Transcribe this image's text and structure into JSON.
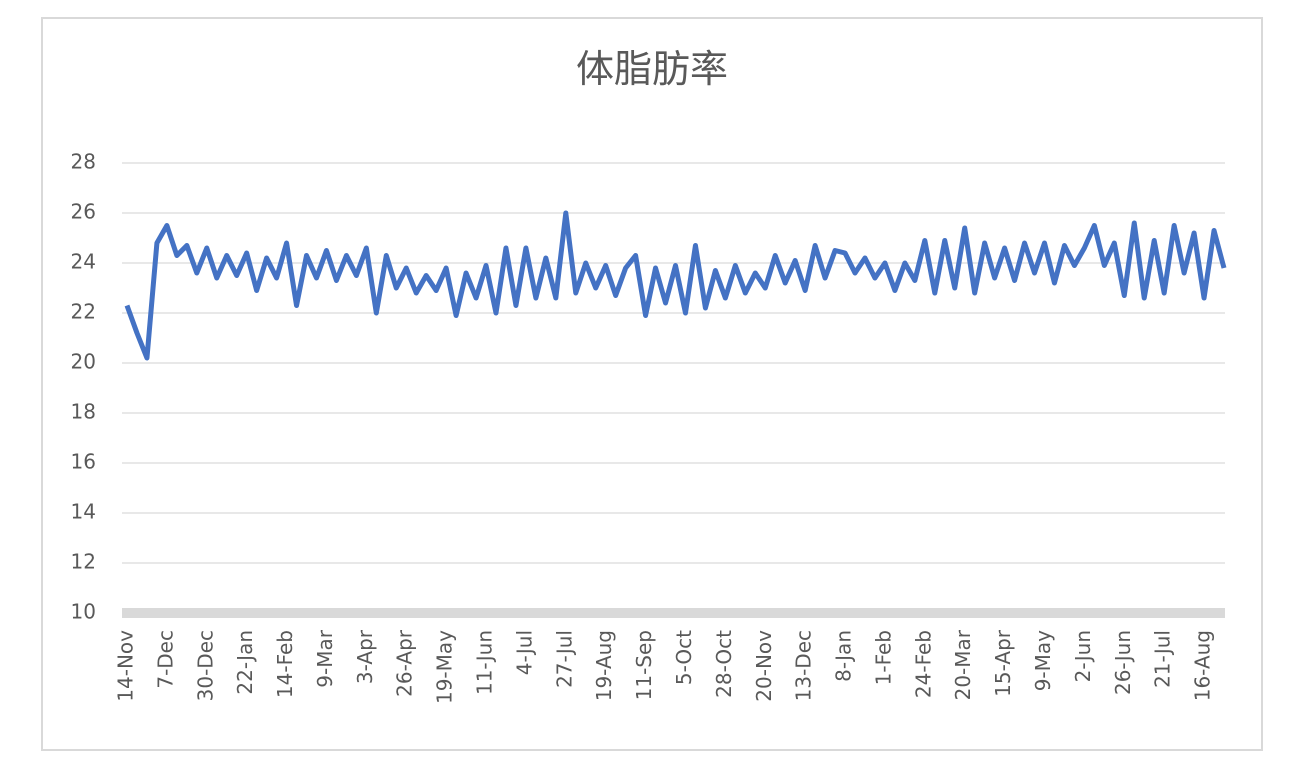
{
  "chart_data": {
    "type": "line",
    "title": "体脂肪率",
    "categories": [
      "14-Nov",
      null,
      null,
      null,
      "7-Dec",
      null,
      null,
      null,
      "30-Dec",
      null,
      null,
      null,
      "22-Jan",
      null,
      null,
      null,
      "14-Feb",
      null,
      null,
      null,
      "9-Mar",
      null,
      null,
      null,
      "3-Apr",
      null,
      null,
      null,
      "26-Apr",
      null,
      null,
      null,
      "19-May",
      null,
      null,
      null,
      "11-Jun",
      null,
      null,
      null,
      "4-Jul",
      null,
      null,
      null,
      "27-Jul",
      null,
      null,
      null,
      "19-Aug",
      null,
      null,
      null,
      "11-Sep",
      null,
      null,
      null,
      "5-Oct",
      null,
      null,
      null,
      "28-Oct",
      null,
      null,
      null,
      "20-Nov",
      null,
      null,
      null,
      "13-Dec",
      null,
      null,
      null,
      "8-Jan",
      null,
      null,
      null,
      "1-Feb",
      null,
      null,
      null,
      "24-Feb",
      null,
      null,
      null,
      "20-Mar",
      null,
      null,
      null,
      "15-Apr",
      null,
      null,
      null,
      "9-May",
      null,
      null,
      null,
      "2-Jun",
      null,
      null,
      null,
      "26-Jun",
      null,
      null,
      null,
      "21-Jul",
      null,
      null,
      null,
      "16-Aug",
      null,
      null
    ],
    "series": [
      {
        "color": "#4472c4",
        "values": [
          22.3,
          21.2,
          20.2,
          24.8,
          25.5,
          24.3,
          24.7,
          23.6,
          24.6,
          23.4,
          24.3,
          23.5,
          24.4,
          22.9,
          24.2,
          23.4,
          24.8,
          22.3,
          24.3,
          23.4,
          24.5,
          23.3,
          24.3,
          23.5,
          24.6,
          22.0,
          24.3,
          23.0,
          23.8,
          22.8,
          23.5,
          22.9,
          23.8,
          21.9,
          23.6,
          22.6,
          23.9,
          22.0,
          24.6,
          22.3,
          24.6,
          22.6,
          24.2,
          22.6,
          26.0,
          22.8,
          24.0,
          23.0,
          23.9,
          22.7,
          23.8,
          24.3,
          21.9,
          23.8,
          22.4,
          23.9,
          22.0,
          24.7,
          22.2,
          23.7,
          22.6,
          23.9,
          22.8,
          23.6,
          23.0,
          24.3,
          23.2,
          24.1,
          22.9,
          24.7,
          23.4,
          24.5,
          24.4,
          23.6,
          24.2,
          23.4,
          24.0,
          22.9,
          24.0,
          23.3,
          24.9,
          22.8,
          24.9,
          23.0,
          25.4,
          22.8,
          24.8,
          23.4,
          24.6,
          23.3,
          24.8,
          23.6,
          24.8,
          23.2,
          24.7,
          23.9,
          24.6,
          25.5,
          23.9,
          24.8,
          22.7,
          25.6,
          22.6,
          24.9,
          22.8,
          25.5,
          23.6,
          25.2,
          22.6,
          25.3,
          23.8
        ]
      }
    ],
    "ylim": [
      10,
      28
    ],
    "yticks": [
      10,
      12,
      14,
      16,
      18,
      20,
      22,
      24,
      26,
      28
    ],
    "grid": true
  }
}
